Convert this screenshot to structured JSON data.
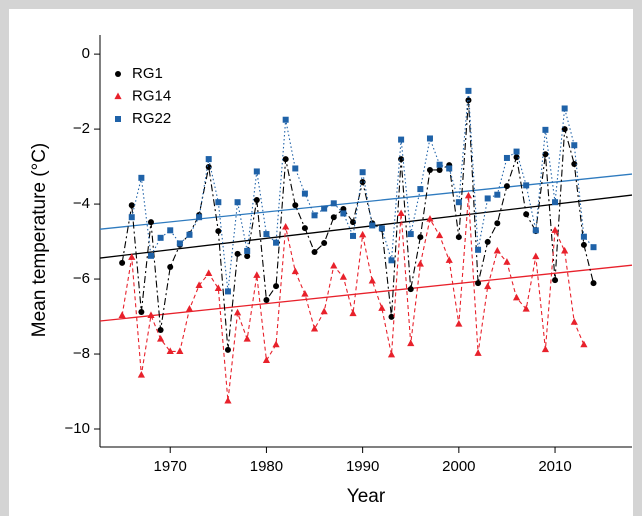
{
  "chart_data": {
    "type": "line",
    "x_label": "Year",
    "y_label": "Mean temperature (°C)",
    "x": [
      1965,
      1966,
      1967,
      1968,
      1969,
      1970,
      1971,
      1972,
      1973,
      1974,
      1975,
      1976,
      1977,
      1978,
      1979,
      1980,
      1981,
      1982,
      1983,
      1984,
      1985,
      1986,
      1987,
      1988,
      1989,
      1990,
      1991,
      1992,
      1993,
      1994,
      1995,
      1996,
      1997,
      1998,
      1999,
      2000,
      2001,
      2002,
      2003,
      2004,
      2005,
      2006,
      2007,
      2008,
      2009,
      2010,
      2011,
      2012,
      2013,
      2014
    ],
    "series": [
      {
        "name": "RG1",
        "color": "#000000",
        "marker": "circle",
        "dash": "7 3 2 3",
        "values": [
          -5.57,
          -4.03,
          -6.88,
          -4.48,
          -7.36,
          -5.68,
          -5.09,
          -4.8,
          -4.29,
          -3.01,
          -4.72,
          -7.89,
          -5.33,
          -5.39,
          -3.89,
          -6.56,
          -6.19,
          -2.8,
          -4.03,
          -4.64,
          -5.28,
          -5.04,
          -4.35,
          -4.13,
          -4.48,
          -3.41,
          -4.51,
          -4.67,
          -7.01,
          -2.8,
          -6.27,
          -4.88,
          -3.09,
          -3.09,
          -2.96,
          -4.88,
          -1.23,
          -6.11,
          -5.01,
          -4.51,
          -3.52,
          -2.75,
          -4.27,
          -4.72,
          -2.67,
          -6.03,
          -2.0,
          -2.93,
          -5.09,
          -6.11
        ]
      },
      {
        "name": "RG14",
        "color": "#e8212b",
        "marker": "triangle",
        "dash": "4 3",
        "values": [
          -6.97,
          -5.42,
          -8.56,
          -6.97,
          -7.6,
          -7.93,
          -7.93,
          -6.8,
          -6.17,
          -5.85,
          -6.25,
          -9.25,
          -6.9,
          -7.6,
          -5.9,
          -8.17,
          -7.75,
          -4.61,
          -5.8,
          -6.4,
          -7.33,
          -6.87,
          -5.65,
          -5.95,
          -6.92,
          -4.82,
          -6.05,
          -6.78,
          -8.02,
          -4.25,
          -7.72,
          -5.6,
          -4.4,
          -4.84,
          -5.5,
          -7.2,
          -3.78,
          -7.98,
          -6.2,
          -5.25,
          -5.55,
          -6.5,
          -6.8,
          -5.4,
          -7.88,
          -4.7,
          -5.25,
          -7.15,
          -7.75,
          null
        ]
      },
      {
        "name": "RG22",
        "color": "#1f62a8",
        "marker": "square",
        "dash": "1.5 2.5",
        "values": [
          null,
          -4.35,
          -3.3,
          -5.38,
          -4.9,
          -4.7,
          -5.05,
          -4.82,
          -4.35,
          -2.8,
          -3.95,
          -6.33,
          -3.95,
          -5.25,
          -3.13,
          -4.8,
          -5.03,
          -1.75,
          -3.05,
          -3.72,
          -4.3,
          -4.12,
          -3.98,
          -4.25,
          -4.85,
          -3.15,
          -4.57,
          -4.65,
          -5.5,
          -2.28,
          -4.8,
          -3.6,
          -2.25,
          -2.95,
          -3.05,
          -3.95,
          -0.98,
          -5.22,
          -3.85,
          -3.75,
          -2.77,
          -2.6,
          -3.5,
          -4.7,
          -2.02,
          -3.95,
          -1.45,
          -2.43,
          -4.87,
          -5.15
        ]
      }
    ],
    "trends": [
      {
        "color": "#000000",
        "x": [
          1962.7,
          2018.0
        ],
        "values": [
          -5.44,
          -3.76
        ]
      },
      {
        "color": "#e8212b",
        "x": [
          1962.7,
          2018.0
        ],
        "values": [
          -7.12,
          -5.63
        ]
      },
      {
        "color": "#2f7bbf",
        "x": [
          1962.7,
          2018.0
        ],
        "values": [
          -4.67,
          -3.2
        ]
      }
    ],
    "xlim": [
      1962.7,
      2018.0
    ],
    "ylim": [
      -10.48,
      0.51
    ],
    "xticks": [
      1970,
      1980,
      1990,
      2000,
      2010
    ],
    "yticks": [
      {
        "value": 0,
        "label": "0"
      },
      {
        "value": -2,
        "label": "−2"
      },
      {
        "value": -4,
        "label": "−4"
      },
      {
        "value": -6,
        "label": "−6"
      },
      {
        "value": -8,
        "label": "−8"
      },
      {
        "value": -10,
        "label": "−10"
      }
    ],
    "legend": "top-left"
  }
}
